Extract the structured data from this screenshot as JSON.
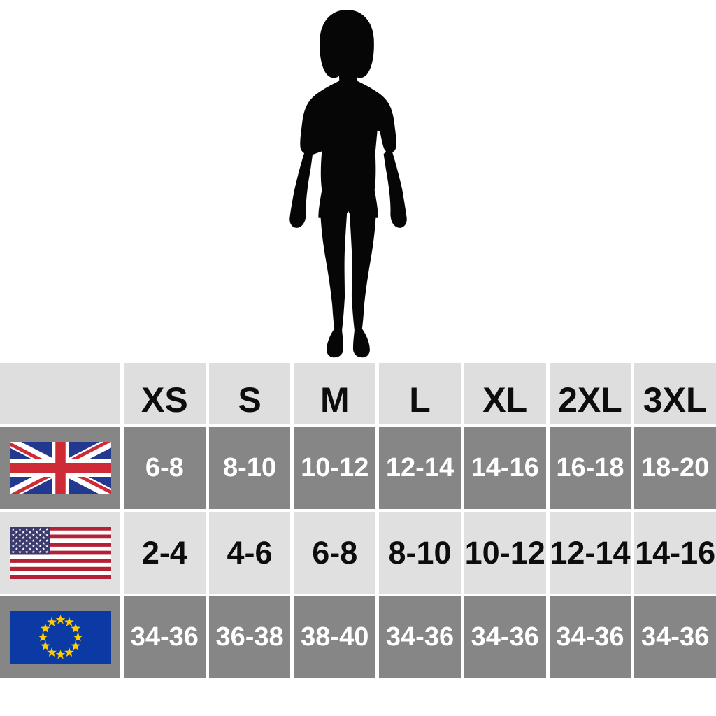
{
  "chart_data": {
    "type": "table",
    "columns": [
      "",
      "XS",
      "S",
      "M",
      "L",
      "XL",
      "2XL",
      "3XL"
    ],
    "rows": [
      [
        "UK",
        "6-8",
        "8-10",
        "10-12",
        "12-14",
        "14-16",
        "16-18",
        "18-20"
      ],
      [
        "US",
        "2-4",
        "4-6",
        "6-8",
        "8-10",
        "10-12",
        "12-14",
        "14-16"
      ],
      [
        "EU",
        "34-36",
        "36-38",
        "38-40",
        "34-36",
        "34-36",
        "34-36",
        "34-36"
      ]
    ],
    "row_flag_icons": [
      "uk-flag-icon",
      "us-flag-icon",
      "eu-flag-icon"
    ],
    "grid": "off",
    "legend_position": "none"
  },
  "figure": {
    "icon": "woman-silhouette"
  },
  "colors": {
    "page_bg": "#ffffff",
    "header_bg": "#dedede",
    "light_bg": "#e0e0e0",
    "dark_bg": "#868686",
    "dark_text": "#ffffff",
    "light_text": "#0d0d0d",
    "silhouette": "#060606",
    "uk_blue": "#22398f",
    "uk_red": "#ce2b37",
    "us_red": "#b22234",
    "us_blue": "#3c3b6e",
    "eu_blue": "#0b3aa5",
    "eu_gold": "#ffcc00"
  }
}
